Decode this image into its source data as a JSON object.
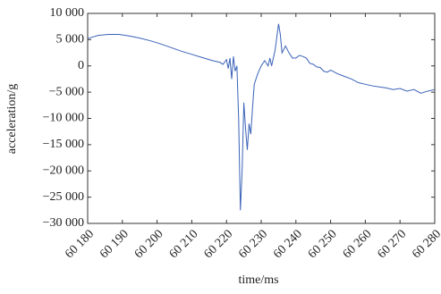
{
  "chart_data": {
    "type": "line",
    "xlabel": "time/ms",
    "ylabel": "acceleration/g",
    "x": [
      60180,
      60183,
      60186,
      60189,
      60192,
      60195,
      60198,
      60201,
      60204,
      60207,
      60210,
      60213,
      60216,
      60218,
      60219,
      60220,
      60220.5,
      60221,
      60221.5,
      60222,
      60222.5,
      60223,
      60223.5,
      60224,
      60224.5,
      60225,
      60225.5,
      60226,
      60226.5,
      60227,
      60227.5,
      60228,
      60229,
      60230,
      60231,
      60232,
      60232.5,
      60233,
      60234,
      60235,
      60235.5,
      60236,
      60237,
      60238,
      60239,
      60240,
      60241,
      60242,
      60243,
      60244,
      60245,
      60246,
      60247,
      60248,
      60249,
      60250,
      60252,
      60254,
      60256,
      60258,
      60260,
      60262,
      60264,
      60266,
      60268,
      60270,
      60272,
      60274,
      60276,
      60278,
      60280
    ],
    "series": [
      {
        "name": "acceleration",
        "color": "#3a62b8",
        "values": [
          5200,
          5800,
          6000,
          6000,
          5700,
          5300,
          4800,
          4200,
          3500,
          2800,
          2200,
          1600,
          1000,
          700,
          300,
          1200,
          -500,
          1500,
          -2500,
          1800,
          -1000,
          0,
          -10000,
          -27500,
          -20000,
          -7000,
          -12000,
          -16000,
          -11000,
          -13000,
          -8000,
          -3500,
          -1500,
          0,
          1000,
          0,
          1500,
          0,
          3000,
          8000,
          6000,
          2500,
          3800,
          2500,
          1500,
          1500,
          2000,
          1800,
          1500,
          500,
          300,
          -200,
          -300,
          -1000,
          -1200,
          -800,
          -1500,
          -2000,
          -2500,
          -3200,
          -3500,
          -3800,
          -4000,
          -4200,
          -4500,
          -4300,
          -4800,
          -4500,
          -5200,
          -4800,
          -4500
        ]
      }
    ],
    "xlim": [
      60180,
      60280
    ],
    "xticks": [
      {
        "value": 60180,
        "label": "60 180"
      },
      {
        "value": 60190,
        "label": "60 190"
      },
      {
        "value": 60200,
        "label": "60 200"
      },
      {
        "value": 60210,
        "label": "60 210"
      },
      {
        "value": 60220,
        "label": "60 220"
      },
      {
        "value": 60230,
        "label": "60 230"
      },
      {
        "value": 60240,
        "label": "60 240"
      },
      {
        "value": 60250,
        "label": "60 250"
      },
      {
        "value": 60260,
        "label": "60 260"
      },
      {
        "value": 60270,
        "label": "60 270"
      },
      {
        "value": 60280,
        "label": "60 280"
      }
    ],
    "ylim": [
      -30000,
      10000
    ],
    "yticks": [
      {
        "value": 10000,
        "label": "10 000"
      },
      {
        "value": 5000,
        "label": "5 000"
      },
      0,
      {
        "value": -5000,
        "label": "−5 000"
      },
      {
        "value": -10000,
        "label": "−10 000"
      },
      {
        "value": -15000,
        "label": "−15 000"
      },
      {
        "value": -20000,
        "label": "−20 000"
      },
      {
        "value": -25000,
        "label": "−25 000"
      },
      {
        "value": -30000,
        "label": "−30 000"
      }
    ],
    "grid": false
  }
}
